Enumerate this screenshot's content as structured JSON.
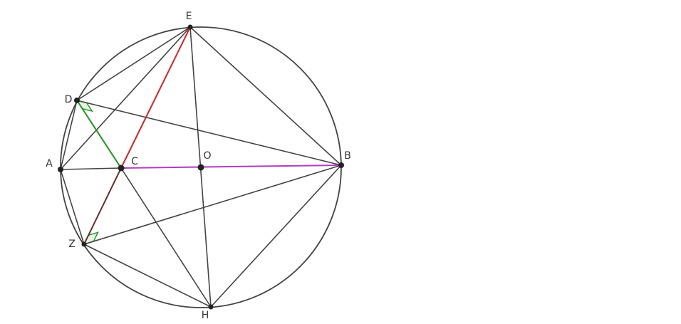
{
  "points": [
    {
      "label": "E"
    },
    {
      "label": "D"
    },
    {
      "label": "A"
    },
    {
      "label": "C"
    },
    {
      "label": "O"
    },
    {
      "label": "B"
    },
    {
      "label": "Z"
    },
    {
      "label": "H"
    }
  ]
}
